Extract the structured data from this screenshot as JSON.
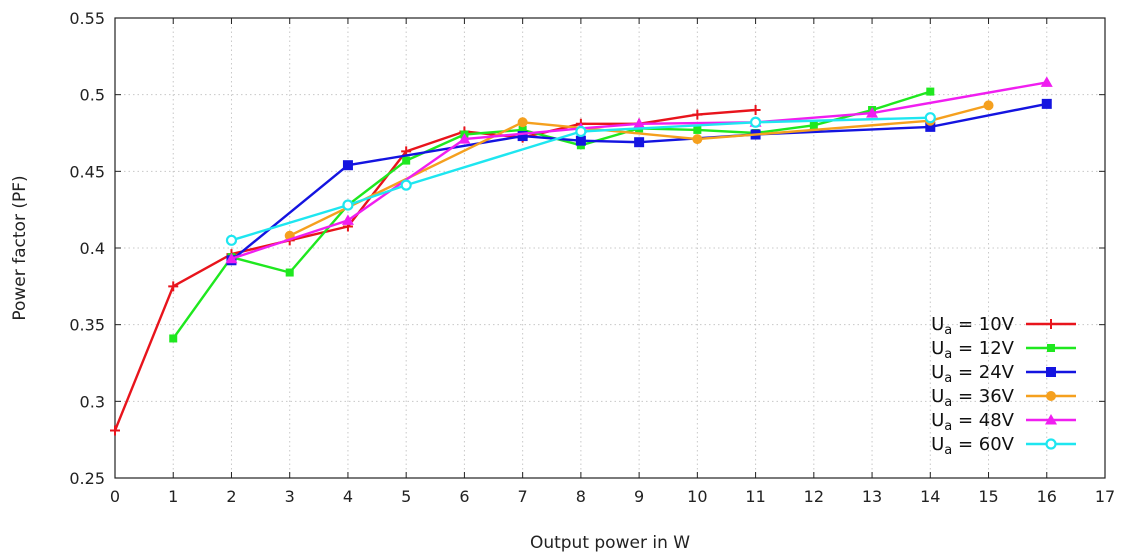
{
  "chart_data": {
    "type": "line",
    "xlabel": "Output power in W",
    "ylabel": "Power factor (PF)",
    "xlim": [
      0,
      17
    ],
    "ylim": [
      0.25,
      0.55
    ],
    "x_ticks": [
      0,
      1,
      2,
      3,
      4,
      5,
      6,
      7,
      8,
      9,
      10,
      11,
      12,
      13,
      14,
      15,
      16,
      17
    ],
    "y_ticks": [
      0.25,
      0.3,
      0.35,
      0.4,
      0.45,
      0.5,
      0.55
    ],
    "grid": true,
    "legend_position": "bottom-right",
    "series": [
      {
        "label_main": "U",
        "label_sub": "a",
        "label_rest": " = 10V",
        "color": "#e8141c",
        "marker": "plus",
        "x": [
          0,
          1,
          2,
          3,
          4,
          5,
          6,
          7,
          8,
          9,
          10,
          11
        ],
        "y": [
          0.281,
          0.375,
          0.396,
          0.405,
          0.414,
          0.463,
          0.476,
          0.472,
          0.481,
          0.481,
          0.487,
          0.49
        ]
      },
      {
        "label_main": "U",
        "label_sub": "a",
        "label_rest": " = 12V",
        "color": "#1fe81f",
        "marker": "square-small",
        "x": [
          1,
          2,
          3,
          4,
          5,
          6,
          7,
          8,
          9,
          10,
          11,
          12,
          13,
          14
        ],
        "y": [
          0.341,
          0.394,
          0.384,
          0.428,
          0.457,
          0.474,
          0.477,
          0.467,
          0.478,
          0.477,
          0.475,
          0.48,
          0.49,
          0.502
        ]
      },
      {
        "label_main": "U",
        "label_sub": "a",
        "label_rest": " = 24V",
        "color": "#1414e0",
        "marker": "square",
        "x": [
          2,
          4,
          7,
          8,
          9,
          11,
          14,
          16
        ],
        "y": [
          0.392,
          0.454,
          0.473,
          0.47,
          0.469,
          0.474,
          0.479,
          0.494
        ]
      },
      {
        "label_main": "U",
        "label_sub": "a",
        "label_rest": " = 36V",
        "color": "#f5a01e",
        "marker": "circle",
        "x": [
          3,
          7,
          10,
          14,
          15
        ],
        "y": [
          0.408,
          0.482,
          0.471,
          0.483,
          0.493
        ]
      },
      {
        "label_main": "U",
        "label_sub": "a",
        "label_rest": " = 48V",
        "color": "#f01ef0",
        "marker": "triangle",
        "x": [
          2,
          4,
          6,
          8,
          9,
          11,
          13,
          16
        ],
        "y": [
          0.393,
          0.418,
          0.471,
          0.478,
          0.481,
          0.482,
          0.488,
          0.508
        ]
      },
      {
        "label_main": "U",
        "label_sub": "a",
        "label_rest": " = 60V",
        "color": "#1ee6f0",
        "marker": "circle-open",
        "x": [
          2,
          4,
          5,
          8,
          11,
          14
        ],
        "y": [
          0.405,
          0.428,
          0.441,
          0.476,
          0.482,
          0.485
        ]
      }
    ]
  }
}
